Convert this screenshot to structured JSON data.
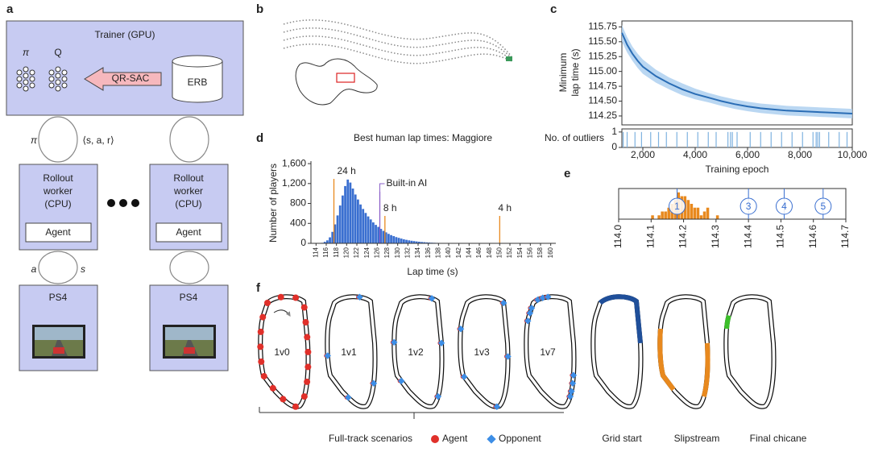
{
  "panel_labels": [
    "a",
    "b",
    "c",
    "d",
    "e",
    "f"
  ],
  "diagram": {
    "trainer": "Trainer (GPU)",
    "policy": "π",
    "q": "Q",
    "algorithm": "QR-SAC",
    "buffer": "ERB",
    "link_policy": "π",
    "link_experience": "⟨s, a, r⟩",
    "workers": [
      {
        "lines": [
          "Rollout",
          "worker",
          "(CPU)"
        ],
        "agent": "Agent",
        "console": "PS4"
      },
      {
        "lines": [
          "Rollout",
          "worker",
          "(CPU)"
        ],
        "agent": "Agent",
        "console": "PS4"
      }
    ],
    "link_action": "a",
    "link_state": "s"
  },
  "chart_data": [
    {
      "type": "line",
      "ylabel": [
        "Minimum",
        "lap time (s)"
      ],
      "xlabel": "Training epoch",
      "x": [
        1200,
        1400,
        1600,
        1800,
        2000,
        2500,
        3000,
        3500,
        4000,
        4500,
        5000,
        5500,
        6000,
        6500,
        7000,
        7500,
        8000,
        8500,
        9000,
        9500,
        10000
      ],
      "series": [
        {
          "color": "#2a6db5",
          "band_color": "#a9cdef",
          "values": [
            115.65,
            115.45,
            115.3,
            115.18,
            115.08,
            114.92,
            114.8,
            114.7,
            114.62,
            114.56,
            114.5,
            114.45,
            114.41,
            114.38,
            114.36,
            114.34,
            114.33,
            114.32,
            114.31,
            114.3,
            114.29
          ],
          "upper": [
            115.78,
            115.58,
            115.42,
            115.3,
            115.2,
            115.03,
            114.9,
            114.8,
            114.71,
            114.64,
            114.58,
            114.53,
            114.49,
            114.46,
            114.44,
            114.42,
            114.41,
            114.4,
            114.39,
            114.38,
            114.37
          ],
          "lower": [
            115.5,
            115.32,
            115.18,
            115.06,
            114.96,
            114.81,
            114.7,
            114.6,
            114.53,
            114.48,
            114.42,
            114.37,
            114.33,
            114.3,
            114.28,
            114.26,
            114.25,
            114.24,
            114.23,
            114.22,
            114.21
          ]
        }
      ],
      "xlim": [
        1200,
        10000
      ],
      "ylim": [
        114.1,
        115.85
      ],
      "yticks": [
        114.25,
        {
          "value": 114.5,
          "label": "114.50"
        },
        114.75,
        {
          "value": 115,
          "label": "115.00"
        },
        115.25,
        {
          "value": 115.5,
          "label": "115.50"
        },
        115.75
      ],
      "xticks": [
        {
          "value": 2000,
          "label": "2,000"
        },
        {
          "value": 4000,
          "label": "4,000"
        },
        {
          "value": 6000,
          "label": "6,000"
        },
        {
          "value": 8000,
          "label": "8,000"
        },
        {
          "value": 10000,
          "label": "10,000"
        }
      ],
      "outliers": {
        "ylabel": "No. of outliers",
        "yticks": [
          0,
          1
        ],
        "ylim": [
          0,
          1.2
        ],
        "color": "#7fb2e0",
        "x": [
          1250,
          1400,
          1700,
          1950,
          2300,
          2600,
          2900,
          3300,
          3700,
          4100,
          4500,
          4800,
          5250,
          5350,
          5420,
          5600,
          6100,
          6500,
          6900,
          7300,
          7700,
          8100,
          8500,
          8620,
          8680,
          8750,
          9100,
          9500,
          9800
        ]
      }
    },
    {
      "type": "histogram",
      "title": "Best human lap times: Maggiore",
      "xlabel": "Lap time (s)",
      "ylabel": "Number of players",
      "bins": [
        115,
        115.5,
        116,
        116.5,
        117,
        117.5,
        118,
        118.5,
        119,
        119.5,
        120,
        120.5,
        121,
        121.5,
        122,
        122.5,
        123,
        123.5,
        124,
        124.5,
        125,
        125.5,
        126,
        126.5,
        127,
        127.5,
        128,
        128.5,
        129,
        129.5,
        130,
        130.5,
        131,
        131.5,
        132,
        132.5,
        133,
        133.5,
        134,
        134.5,
        135,
        135.5,
        136,
        136.5,
        137,
        137.5,
        138,
        138.5,
        139,
        139.5,
        140,
        140.5,
        141
      ],
      "counts": [
        10,
        30,
        60,
        120,
        230,
        380,
        560,
        760,
        960,
        1150,
        1280,
        1220,
        1100,
        980,
        880,
        780,
        690,
        610,
        540,
        480,
        420,
        370,
        330,
        290,
        250,
        220,
        190,
        165,
        145,
        125,
        110,
        95,
        80,
        70,
        60,
        52,
        45,
        38,
        32,
        27,
        23,
        19,
        16,
        13,
        11,
        9,
        7,
        6,
        5,
        4,
        3,
        2
      ],
      "color": "#3a6fd0",
      "xlim": [
        113,
        161
      ],
      "ylim": [
        0,
        1650
      ],
      "xticks": [
        114,
        116,
        118,
        120,
        122,
        124,
        126,
        128,
        130,
        132,
        134,
        136,
        138,
        140,
        142,
        144,
        146,
        148,
        150,
        152,
        154,
        156,
        158,
        160
      ],
      "yticks": [
        0,
        400,
        800,
        {
          "value": 1200,
          "label": "1,200"
        },
        {
          "value": 1600,
          "label": "1,600"
        }
      ],
      "annotations": [
        {
          "label": "24 h",
          "x": 117.5,
          "color": "#e8891e"
        },
        {
          "label": "Built-in AI",
          "x": 126.5,
          "color": "#8a5fc8"
        },
        {
          "label": "8 h",
          "x": 127.5,
          "color": "#e8891e"
        },
        {
          "label": "4 h",
          "x": 150,
          "color": "#e8891e"
        }
      ]
    },
    {
      "type": "histogram",
      "bins": [
        114.1,
        114.11,
        114.12,
        114.13,
        114.14,
        114.15,
        114.16,
        114.17,
        114.18,
        114.19,
        114.2,
        114.21,
        114.22,
        114.23,
        114.24,
        114.25,
        114.26,
        114.27,
        114.28,
        114.29,
        114.3,
        114.31
      ],
      "counts": [
        1,
        0,
        1,
        2,
        2,
        3,
        4,
        5,
        7,
        6,
        6,
        5,
        4,
        3,
        3,
        1,
        2,
        3,
        0,
        0,
        1
      ],
      "color": "#e8891e",
      "xlim": [
        114,
        114.7
      ],
      "ylim": [
        0,
        8
      ],
      "xticks": [
        {
          "value": 114,
          "label": "114.0"
        },
        114.1,
        114.2,
        114.3,
        114.4,
        114.5,
        114.6,
        114.7
      ],
      "markers": [
        {
          "label": "1",
          "x": 114.18
        },
        {
          "label": "3",
          "x": 114.4
        },
        {
          "label": "4",
          "x": 114.51
        },
        {
          "label": "5",
          "x": 114.63
        }
      ],
      "marker_color": "#3a6fd0"
    }
  ],
  "scenarios": {
    "tracks": [
      "1v0",
      "1v1",
      "1v2",
      "1v3",
      "1v7"
    ],
    "group": "Full-track scenarios",
    "legend": [
      {
        "name": "Agent",
        "color": "#e0302a"
      },
      {
        "name": "Opponent",
        "color": "#3d8ee6"
      }
    ],
    "highlights": [
      {
        "name": "Grid start",
        "color": "#1f4f9a"
      },
      {
        "name": "Slipstream",
        "color": "#e8891e"
      },
      {
        "name": "Final chicane",
        "color": "#3cbf2a"
      }
    ]
  }
}
